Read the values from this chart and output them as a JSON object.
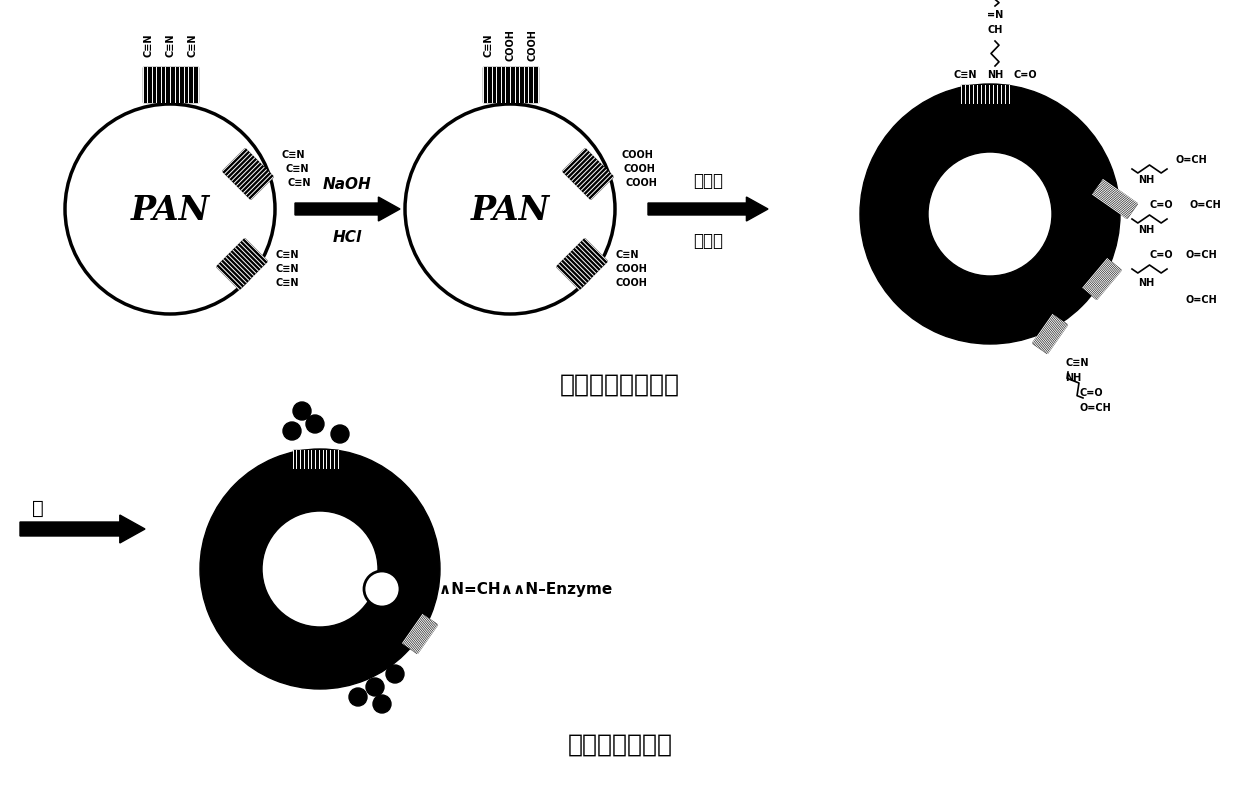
{
  "background_color": "#ffffff",
  "title_top": "聚丙烯腈球的改性",
  "title_bottom": "酪氨酸酶的固定",
  "title_fontsize": 18,
  "arrow1_label_line1": "NaOH",
  "arrow1_label_line2": "HCl",
  "arrow2_label_line1": "乙二胺",
  "arrow2_label_line2": "戊二醛",
  "arrow3_label": "酶",
  "pan_label": "PAN",
  "fig_width": 12.39,
  "fig_height": 8.03
}
